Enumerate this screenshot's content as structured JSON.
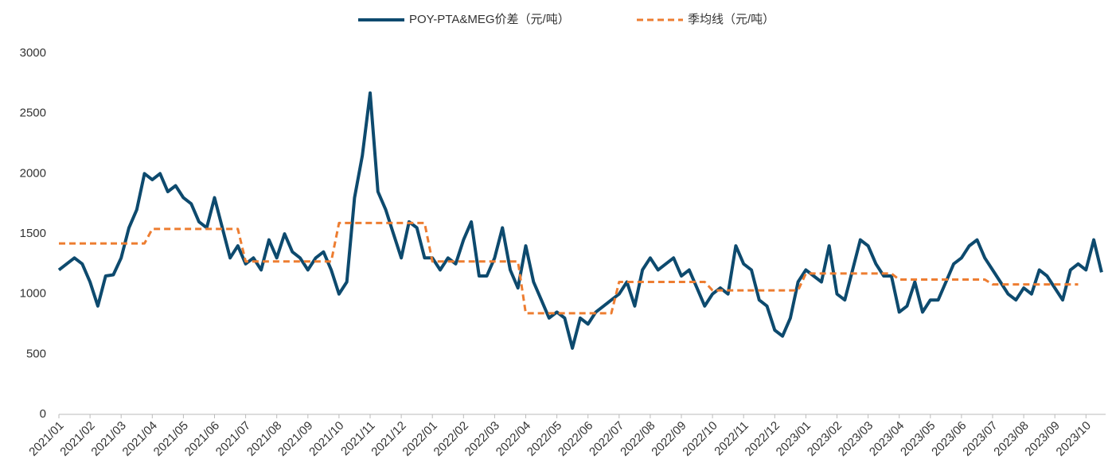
{
  "chart_data": {
    "type": "line",
    "categories": [
      "2021/01",
      null,
      null,
      null,
      "2021/02",
      null,
      null,
      null,
      "2021/03",
      null,
      null,
      null,
      "2021/04",
      null,
      null,
      null,
      "2021/05",
      null,
      null,
      null,
      "2021/06",
      null,
      null,
      null,
      "2021/07",
      null,
      null,
      null,
      "2021/08",
      null,
      null,
      null,
      "2021/09",
      null,
      null,
      null,
      "2021/10",
      null,
      null,
      null,
      "2021/11",
      null,
      null,
      null,
      "2021/12",
      null,
      null,
      null,
      "2022/01",
      null,
      null,
      null,
      "2022/02",
      null,
      null,
      null,
      "2022/03",
      null,
      null,
      null,
      "2022/04",
      null,
      null,
      null,
      "2022/05",
      null,
      null,
      null,
      "2022/06",
      null,
      null,
      null,
      "2022/07",
      null,
      null,
      null,
      "2022/08",
      null,
      null,
      null,
      "2022/09",
      null,
      null,
      null,
      "2022/10",
      null,
      null,
      null,
      "2022/11",
      null,
      null,
      null,
      "2022/12",
      null,
      null,
      null,
      "2023/01",
      null,
      null,
      null,
      "2023/02",
      null,
      null,
      null,
      "2023/03",
      null,
      null,
      null,
      "2023/04",
      null,
      null,
      null,
      "2023/05",
      null,
      null,
      null,
      "2023/06",
      null,
      null,
      null,
      "2023/07",
      null,
      null,
      null,
      "2023/08",
      null,
      null,
      null,
      "2023/09",
      null,
      null,
      null,
      "2023/10",
      null,
      null
    ],
    "series": [
      {
        "name": "POY-PTA&MEG价差（元/吨）",
        "color": "#0d4a6e",
        "style": "solid",
        "values": [
          1200,
          1250,
          1300,
          1250,
          1100,
          900,
          1150,
          1160,
          1300,
          1550,
          1700,
          2000,
          1950,
          2000,
          1850,
          1900,
          1800,
          1750,
          1600,
          1550,
          1800,
          1550,
          1300,
          1400,
          1250,
          1300,
          1200,
          1450,
          1300,
          1500,
          1350,
          1300,
          1200,
          1300,
          1350,
          1200,
          1000,
          1100,
          1800,
          2150,
          2670,
          1850,
          1700,
          1500,
          1300,
          1600,
          1550,
          1300,
          1300,
          1200,
          1300,
          1250,
          1450,
          1600,
          1150,
          1150,
          1300,
          1550,
          1200,
          1050,
          1400,
          1100,
          950,
          800,
          850,
          800,
          550,
          800,
          750,
          850,
          900,
          950,
          1000,
          1100,
          900,
          1200,
          1300,
          1200,
          1250,
          1300,
          1150,
          1200,
          1050,
          900,
          1000,
          1050,
          1000,
          1400,
          1250,
          1200,
          950,
          900,
          700,
          650,
          800,
          1100,
          1200,
          1150,
          1100,
          1400,
          1000,
          950,
          1200,
          1450,
          1400,
          1250,
          1150,
          1150,
          850,
          900,
          1100,
          850,
          950,
          950,
          1100,
          1250,
          1300,
          1400,
          1450,
          1300,
          1200,
          1100,
          1000,
          950,
          1050,
          1000,
          1200,
          1150,
          1050,
          950,
          1200,
          1250,
          1200,
          1450,
          1180
        ]
      },
      {
        "name": "季均线（元/吨）",
        "color": "#ed7d31",
        "style": "dashed",
        "values": [
          1420,
          1420,
          1420,
          1420,
          1420,
          1420,
          1420,
          1420,
          1420,
          1420,
          1420,
          1420,
          1540,
          1540,
          1540,
          1540,
          1540,
          1540,
          1540,
          1540,
          1540,
          1540,
          1540,
          1540,
          1270,
          1270,
          1270,
          1270,
          1270,
          1270,
          1270,
          1270,
          1270,
          1270,
          1270,
          1270,
          1590,
          1590,
          1590,
          1590,
          1590,
          1590,
          1590,
          1590,
          1590,
          1590,
          1590,
          1590,
          1270,
          1270,
          1270,
          1270,
          1270,
          1270,
          1270,
          1270,
          1270,
          1270,
          1270,
          1270,
          840,
          840,
          840,
          840,
          840,
          840,
          840,
          840,
          840,
          840,
          840,
          840,
          1100,
          1100,
          1100,
          1100,
          1100,
          1100,
          1100,
          1100,
          1100,
          1100,
          1100,
          1100,
          1030,
          1030,
          1030,
          1030,
          1030,
          1030,
          1030,
          1030,
          1030,
          1030,
          1030,
          1030,
          1170,
          1170,
          1170,
          1170,
          1170,
          1170,
          1170,
          1170,
          1170,
          1170,
          1170,
          1170,
          1120,
          1120,
          1120,
          1120,
          1120,
          1120,
          1120,
          1120,
          1120,
          1120,
          1120,
          1120,
          1080,
          1080,
          1080,
          1080,
          1080,
          1080,
          1080,
          1080,
          1080,
          1080,
          1080,
          1080,
          null,
          null,
          null
        ]
      }
    ],
    "ylim": [
      0,
      3000
    ],
    "yticks": [
      0,
      500,
      1000,
      1500,
      2000,
      2500,
      3000
    ],
    "grid": false,
    "legend": "top"
  }
}
